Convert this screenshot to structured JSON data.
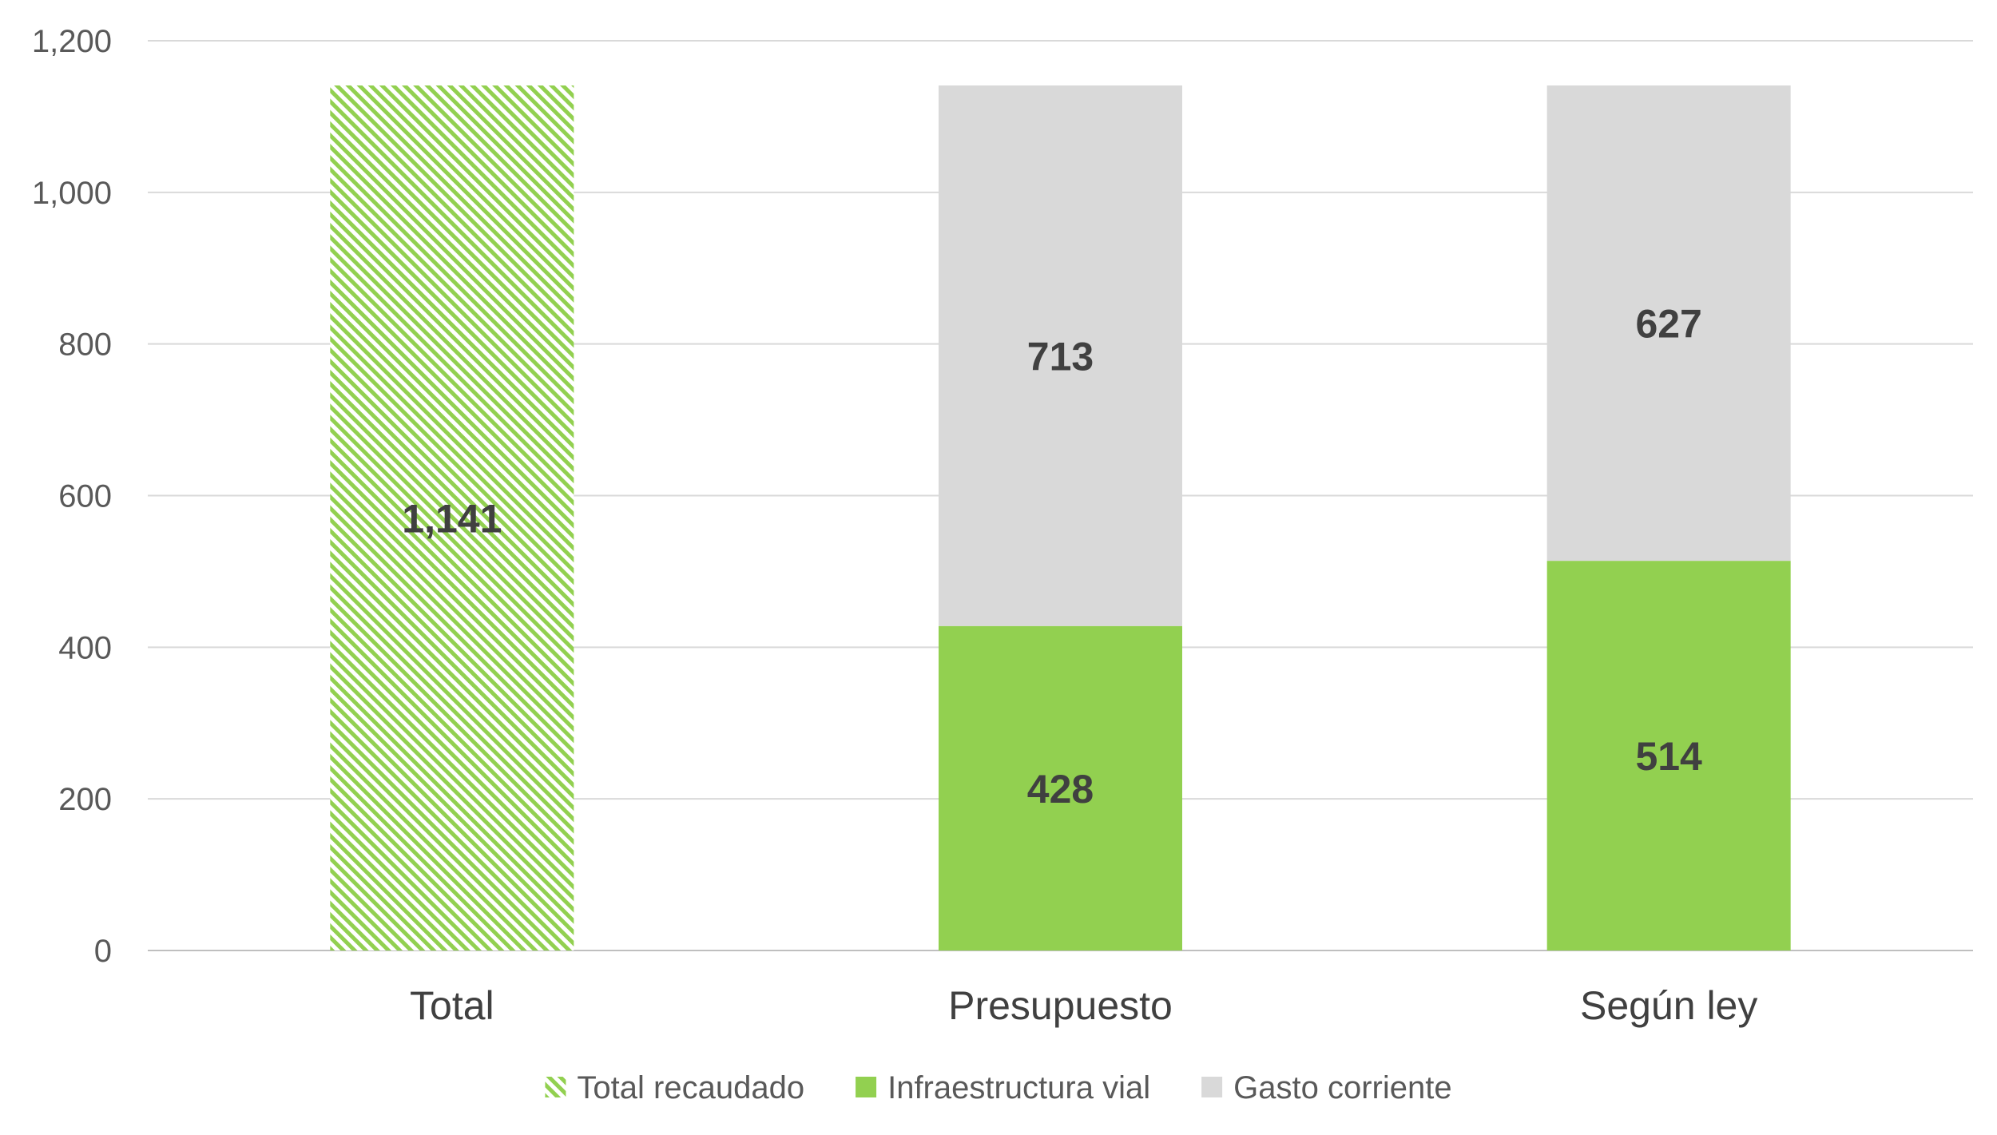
{
  "chart_data": {
    "type": "bar",
    "stacked": true,
    "categories": [
      "Total",
      "Presupuesto",
      "Según ley"
    ],
    "series": [
      {
        "name": "Total recaudado",
        "values": [
          1141,
          null,
          null
        ],
        "color": "#92d050",
        "pattern": "diagonal-hatch"
      },
      {
        "name": "Infraestructura vial",
        "values": [
          null,
          428,
          514
        ],
        "color": "#92d050"
      },
      {
        "name": "Gasto corriente",
        "values": [
          null,
          713,
          627
        ],
        "color": "#d9d9d9"
      }
    ],
    "data_labels": [
      {
        "category": "Total",
        "series": "Total recaudado",
        "text": "1,141"
      },
      {
        "category": "Presupuesto",
        "series": "Infraestructura vial",
        "text": "428"
      },
      {
        "category": "Presupuesto",
        "series": "Gasto corriente",
        "text": "713"
      },
      {
        "category": "Según ley",
        "series": "Infraestructura vial",
        "text": "514"
      },
      {
        "category": "Según ley",
        "series": "Gasto corriente",
        "text": "627"
      }
    ],
    "ylim": [
      0,
      1200
    ],
    "yticks": [
      0,
      200,
      400,
      600,
      800,
      1000,
      1200
    ],
    "ytick_labels": [
      "0",
      "200",
      "400",
      "600",
      "800",
      "1,000",
      "1,200"
    ],
    "grid": true,
    "legend_position": "bottom",
    "title": "",
    "xlabel": "",
    "ylabel": ""
  }
}
